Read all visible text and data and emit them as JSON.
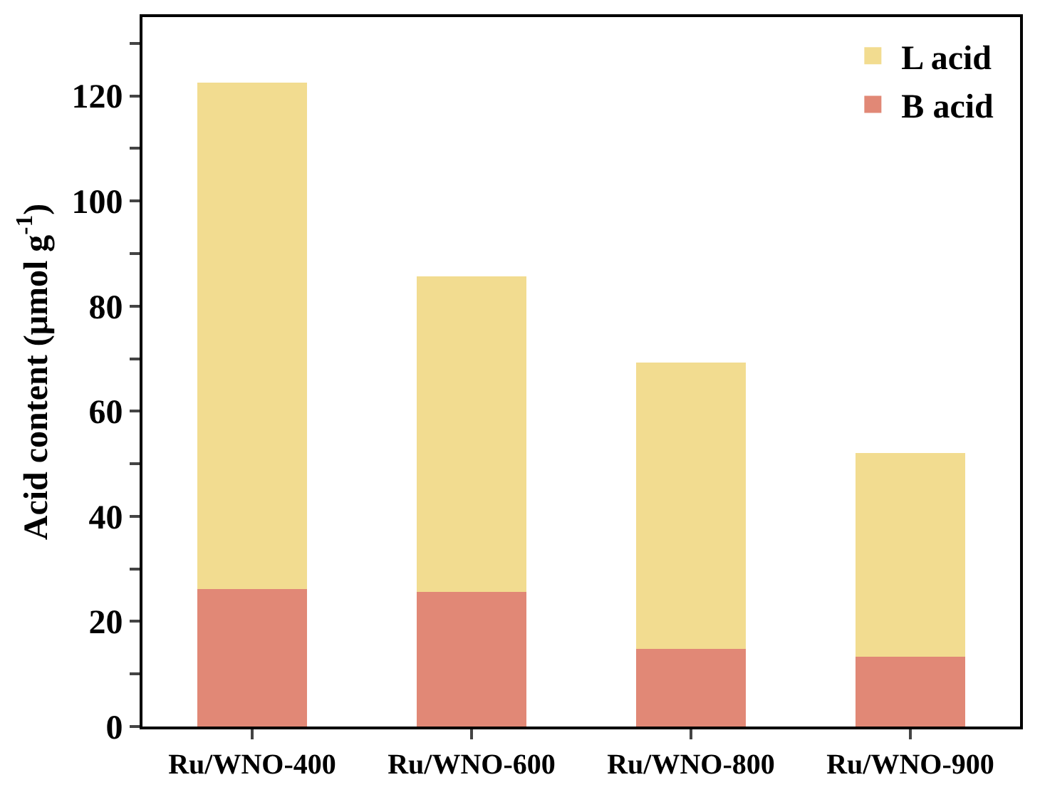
{
  "chart_data": {
    "type": "bar",
    "stacked": true,
    "ylabel": "Acid content (μmol g$^{-1}$)",
    "categories": [
      "Ru/WNO-400",
      "Ru/WNO-600",
      "Ru/WNO-800",
      "Ru/WNO-900"
    ],
    "series": [
      {
        "name": "B acid",
        "color": "#e18876",
        "values": [
          26.1,
          25.6,
          14.8,
          13.3
        ]
      },
      {
        "name": "L acid",
        "color": "#f2dc90",
        "values": [
          96.4,
          60.0,
          54.4,
          38.7
        ]
      }
    ],
    "ylim": [
      0,
      135
    ],
    "yticks": [
      0,
      {
        "value": 10,
        "label": null
      },
      20,
      {
        "value": 30,
        "label": null
      },
      40,
      {
        "value": 50,
        "label": null
      },
      60,
      {
        "value": 70,
        "label": null
      },
      80,
      {
        "value": 90,
        "label": null
      },
      100,
      {
        "value": 110,
        "label": null
      },
      120,
      {
        "value": 130,
        "label": null
      }
    ],
    "grid": false,
    "legend": "top right"
  }
}
